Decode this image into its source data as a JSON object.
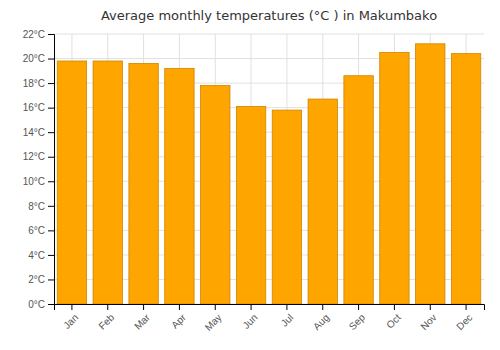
{
  "chart_data": {
    "type": "bar",
    "title": "Average monthly temperatures (°C ) in Makumbako",
    "categories": [
      "Jan",
      "Feb",
      "Mar",
      "Apr",
      "May",
      "Jun",
      "Jul",
      "Aug",
      "Sep",
      "Oct",
      "Nov",
      "Dec"
    ],
    "values": [
      19.8,
      19.8,
      19.6,
      19.2,
      17.8,
      16.1,
      15.8,
      16.7,
      18.6,
      20.5,
      21.2,
      20.4
    ],
    "color": "#FFA500",
    "ylim": [
      0,
      22
    ],
    "yticks": [
      {
        "value": 0,
        "label": "0°C"
      },
      {
        "value": 2,
        "label": "2°C"
      },
      {
        "value": 4,
        "label": "4°C"
      },
      {
        "value": 6,
        "label": "6°C"
      },
      {
        "value": 8,
        "label": "8°C"
      },
      {
        "value": 10,
        "label": "10°C"
      },
      {
        "value": 12,
        "label": "12°C"
      },
      {
        "value": 14,
        "label": "14°C"
      },
      {
        "value": 16,
        "label": "16°C"
      },
      {
        "value": 18,
        "label": "18°C"
      },
      {
        "value": 20,
        "label": "20°C"
      },
      {
        "value": 22,
        "label": "22°C"
      }
    ],
    "grid": true
  }
}
